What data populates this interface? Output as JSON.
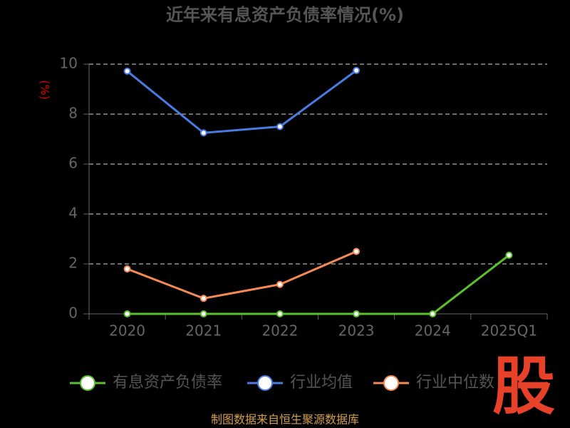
{
  "chart_data": {
    "type": "line",
    "title": "近年来有息资产负债率情况(%)",
    "y_label": "(%)",
    "categories": [
      "2020",
      "2021",
      "2022",
      "2023",
      "2024",
      "2025Q1"
    ],
    "series": [
      {
        "name": "有息资产负债率",
        "color": "#5cbf2e",
        "values": [
          0,
          0,
          0,
          0,
          0,
          2.35
        ]
      },
      {
        "name": "行业均值",
        "color": "#4a7be0",
        "values": [
          9.72,
          7.25,
          7.5,
          9.75,
          null,
          null
        ]
      },
      {
        "name": "行业中位数",
        "color": "#f58a55",
        "values": [
          1.8,
          0.62,
          1.18,
          2.5,
          null,
          null
        ]
      }
    ],
    "ylim": [
      0,
      10
    ],
    "yticks": [
      0,
      2,
      4,
      6,
      8,
      10
    ],
    "grid": true,
    "legend": "bottom",
    "source": "制图数据来自恒生聚源数据库",
    "logo": "股"
  }
}
